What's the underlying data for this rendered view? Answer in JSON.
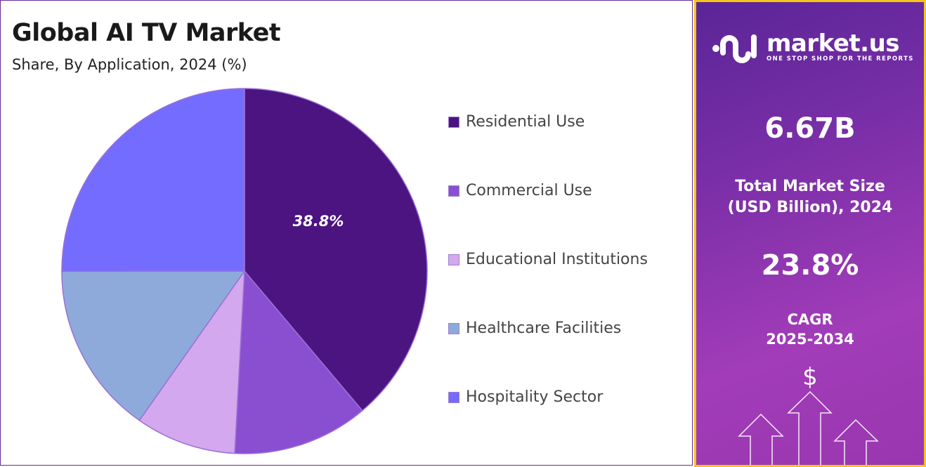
{
  "header": {
    "title": "Global AI TV Market",
    "subtitle": "Share, By Application, 2024 (%)"
  },
  "chart_data": {
    "type": "pie",
    "title": "Global AI TV Market",
    "subtitle": "Share, By Application, 2024 (%)",
    "categories": [
      "Residential Use",
      "Commercial Use",
      "Educational Institutions",
      "Healthcare Facilities",
      "Hospitality Sector"
    ],
    "values": [
      38.8,
      12.0,
      8.9,
      15.2,
      25.0
    ],
    "colors": [
      "#4b1480",
      "#8a4fd0",
      "#d4a8ee",
      "#8eaada",
      "#746cff"
    ],
    "data_labels": [
      "38.8%"
    ],
    "start_angle": "12 o'clock, clockwise",
    "legend_position": "right"
  },
  "sidebar": {
    "logo_text": "market.us",
    "logo_tagline": "ONE STOP SHOP FOR THE REPORTS",
    "market_size": "6.67B",
    "market_size_label_1": "Total Market Size",
    "market_size_label_2": "(USD Billion), 2024",
    "cagr": "23.8%",
    "cagr_label_1": "CAGR",
    "cagr_label_2": "2025-2034",
    "dollar_symbol": "$",
    "border_color": "#f5c518"
  }
}
